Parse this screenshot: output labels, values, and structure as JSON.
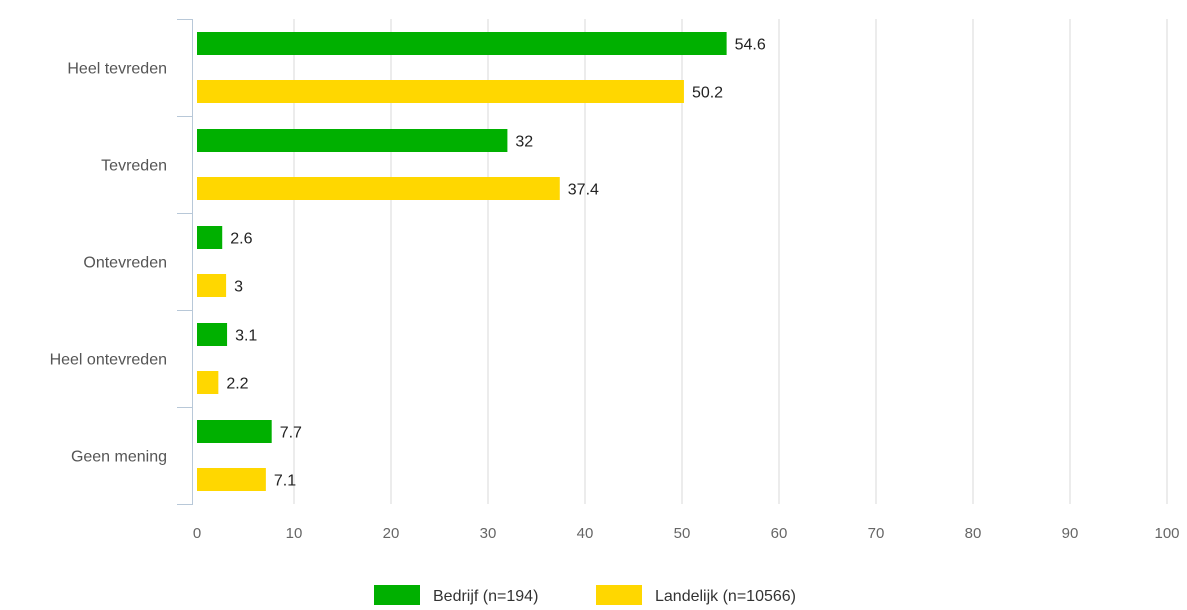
{
  "chart_data": {
    "type": "bar",
    "orientation": "horizontal",
    "categories": [
      "Heel tevreden",
      "Tevreden",
      "Ontevreden",
      "Heel ontevreden",
      "Geen mening"
    ],
    "series": [
      {
        "name": "Bedrijf (n=194)",
        "color": "#00b000",
        "values": [
          54.6,
          32,
          2.6,
          3.1,
          7.7
        ],
        "labels": [
          "54.6",
          "32",
          "2.6",
          "3.1",
          "7.7"
        ]
      },
      {
        "name": "Landelijk (n=10566)",
        "color": "#ffd700",
        "values": [
          50.2,
          37.4,
          3,
          2.2,
          7.1
        ],
        "labels": [
          "50.2",
          "37.4",
          "3",
          "2.2",
          "7.1"
        ]
      }
    ],
    "xlim": [
      0,
      100
    ],
    "xticks": [
      0,
      10,
      20,
      30,
      40,
      50,
      60,
      70,
      80,
      90,
      100
    ],
    "xtick_labels": [
      "0",
      "10",
      "20",
      "30",
      "40",
      "50",
      "60",
      "70",
      "80",
      "90",
      "100"
    ],
    "grid": true,
    "legend_position": "bottom-center",
    "title": "",
    "xlabel": "",
    "ylabel": ""
  }
}
